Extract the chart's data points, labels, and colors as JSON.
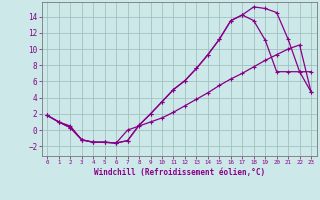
{
  "xlabel": "Windchill (Refroidissement éolien,°C)",
  "ylabel": "",
  "bg_color": "#cce8e8",
  "grid_color": "#99bbbb",
  "line_color": "#880088",
  "xlim": [
    -0.5,
    23.5
  ],
  "ylim": [
    -3.2,
    15.8
  ],
  "xticks": [
    0,
    1,
    2,
    3,
    4,
    5,
    6,
    7,
    8,
    9,
    10,
    11,
    12,
    13,
    14,
    15,
    16,
    17,
    18,
    19,
    20,
    21,
    22,
    23
  ],
  "yticks": [
    -2,
    0,
    2,
    4,
    6,
    8,
    10,
    12,
    14
  ],
  "line1_x": [
    0,
    1,
    2,
    3,
    4,
    5,
    6,
    7,
    8,
    9,
    10,
    11,
    12,
    13,
    14,
    15,
    16,
    17,
    18,
    19,
    20,
    21,
    22,
    23
  ],
  "line1_y": [
    1.8,
    1.0,
    0.3,
    -1.2,
    -1.5,
    -1.5,
    -1.6,
    -1.3,
    0.6,
    2.0,
    3.5,
    5.0,
    6.1,
    7.6,
    9.3,
    11.2,
    13.5,
    14.2,
    15.2,
    15.0,
    14.5,
    11.2,
    7.2,
    7.2
  ],
  "line2_x": [
    0,
    1,
    2,
    3,
    4,
    5,
    6,
    7,
    8,
    9,
    10,
    11,
    12,
    13,
    14,
    15,
    16,
    17,
    18,
    19,
    20,
    21,
    22,
    23
  ],
  "line2_y": [
    1.8,
    1.0,
    0.3,
    -1.2,
    -1.5,
    -1.5,
    -1.6,
    -1.3,
    0.6,
    2.0,
    3.5,
    5.0,
    6.1,
    7.6,
    9.3,
    11.2,
    13.5,
    14.2,
    13.5,
    11.1,
    7.2,
    7.2,
    7.2,
    4.7
  ],
  "line3_x": [
    0,
    1,
    2,
    3,
    4,
    5,
    6,
    7,
    8,
    9,
    10,
    11,
    12,
    13,
    14,
    15,
    16,
    17,
    18,
    19,
    20,
    21,
    22,
    23
  ],
  "line3_y": [
    1.8,
    1.0,
    0.5,
    -1.2,
    -1.5,
    -1.5,
    -1.6,
    0.0,
    0.5,
    1.0,
    1.5,
    2.2,
    3.0,
    3.8,
    4.6,
    5.5,
    6.3,
    7.0,
    7.8,
    8.6,
    9.3,
    10.0,
    10.5,
    4.7
  ]
}
